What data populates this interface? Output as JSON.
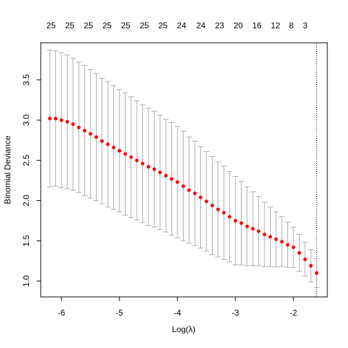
{
  "chart_data": {
    "type": "errorbar",
    "xlabel": "Log(λ)",
    "ylabel": "Binomial Deviance",
    "x": [
      -6.2,
      -6.1,
      -6.0,
      -5.9,
      -5.8,
      -5.7,
      -5.6,
      -5.5,
      -5.4,
      -5.3,
      -5.2,
      -5.1,
      -5.0,
      -4.9,
      -4.8,
      -4.7,
      -4.6,
      -4.5,
      -4.4,
      -4.3,
      -4.2,
      -4.1,
      -4.0,
      -3.9,
      -3.8,
      -3.7,
      -3.6,
      -3.5,
      -3.4,
      -3.3,
      -3.2,
      -3.1,
      -3.0,
      -2.9,
      -2.8,
      -2.7,
      -2.6,
      -2.5,
      -2.4,
      -2.3,
      -2.2,
      -2.1,
      -2.0,
      -1.9,
      -1.8,
      -1.7,
      -1.6
    ],
    "values": [
      3.02,
      3.02,
      3.0,
      2.98,
      2.95,
      2.91,
      2.87,
      2.83,
      2.79,
      2.74,
      2.7,
      2.66,
      2.62,
      2.58,
      2.54,
      2.5,
      2.46,
      2.42,
      2.39,
      2.35,
      2.31,
      2.27,
      2.23,
      2.18,
      2.13,
      2.09,
      2.04,
      1.99,
      1.94,
      1.89,
      1.85,
      1.8,
      1.75,
      1.72,
      1.68,
      1.65,
      1.62,
      1.58,
      1.55,
      1.52,
      1.49,
      1.45,
      1.42,
      1.35,
      1.27,
      1.19,
      1.1
    ],
    "errors": [
      0.85,
      0.84,
      0.84,
      0.83,
      0.82,
      0.81,
      0.81,
      0.8,
      0.79,
      0.78,
      0.78,
      0.77,
      0.76,
      0.76,
      0.75,
      0.74,
      0.73,
      0.73,
      0.72,
      0.71,
      0.7,
      0.7,
      0.69,
      0.68,
      0.66,
      0.65,
      0.63,
      0.62,
      0.61,
      0.59,
      0.58,
      0.56,
      0.55,
      0.52,
      0.49,
      0.46,
      0.43,
      0.4,
      0.37,
      0.34,
      0.31,
      0.28,
      0.25,
      0.23,
      0.21,
      0.2,
      0.18
    ],
    "color": "#ff0000",
    "error_color": "#aaaaaa",
    "xlim": [
      -6.357,
      -1.417
    ],
    "ylim": [
      0.803,
      3.961
    ],
    "xticks": [
      -6,
      -5,
      -4,
      -3,
      -2
    ],
    "yticks": [
      {
        "value": 1,
        "label": "1.0"
      },
      {
        "value": 1.5,
        "label": "1.5"
      },
      {
        "value": 2,
        "label": "2.0"
      },
      {
        "value": 2.5,
        "label": "2.5"
      },
      {
        "value": 3,
        "label": "3.0"
      },
      {
        "value": 3.5,
        "label": "3.5"
      }
    ],
    "top_x": [
      -6.179,
      -5.857,
      -5.536,
      -5.214,
      -4.893,
      -4.571,
      -4.25,
      -3.929,
      -3.595,
      -3.274,
      -2.952,
      -2.631,
      -2.31,
      -2.036,
      -1.798
    ],
    "top_labels": [
      25,
      25,
      25,
      25,
      25,
      25,
      25,
      24,
      24,
      23,
      20,
      16,
      12,
      8,
      3
    ],
    "vlines": [
      -1.6
    ]
  }
}
